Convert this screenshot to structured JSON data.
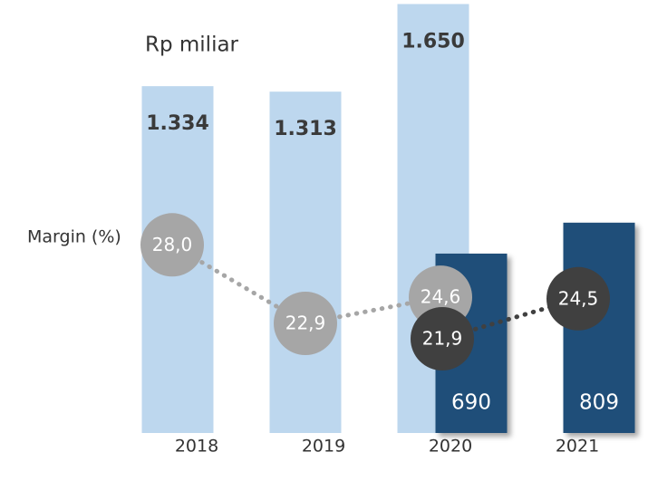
{
  "chart_data": {
    "type": "bar",
    "unit_label": "Rp miliar",
    "margin_label": "Margin (%)",
    "categories": [
      "2018",
      "2019",
      "2020",
      "2021"
    ],
    "series": [
      {
        "color": "#bdd7ee",
        "values": [
          1334,
          1313,
          1650,
          null
        ],
        "value_labels": [
          "1.334",
          "1.313",
          "1.650",
          null
        ]
      },
      {
        "color": "#1f4e79",
        "values": [
          null,
          null,
          690,
          809
        ]
      }
    ],
    "margin_series": [
      {
        "color": "#a6a6a6",
        "values": [
          28.0,
          22.9,
          24.6,
          null
        ],
        "value_labels": [
          "28,0",
          "22,9",
          "24,6",
          null
        ]
      },
      {
        "color": "#404040",
        "values": [
          null,
          null,
          21.9,
          24.5
        ],
        "value_labels": [
          null,
          null,
          "21,9",
          "24,5"
        ]
      }
    ]
  }
}
